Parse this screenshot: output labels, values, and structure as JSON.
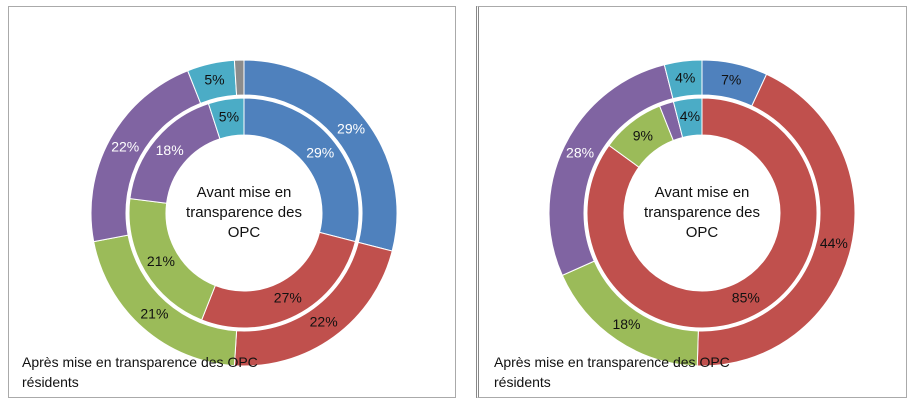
{
  "chart_data": [
    {
      "type": "donut",
      "colors": [
        "#4f81bd",
        "#c0504d",
        "#9bbb59",
        "#8064a2",
        "#4bacc6",
        "#8c8c8c"
      ],
      "series": [
        {
          "name": "Après mise en transparence des OPC résidents",
          "values": [
            29,
            22,
            21,
            22,
            5,
            1
          ],
          "value_labels": [
            "29%",
            "22%",
            "21%",
            "22%",
            "5%",
            null
          ]
        },
        {
          "name": "Avant mise en transparence des OPC",
          "values": [
            29,
            27,
            21,
            18,
            5
          ],
          "value_labels": [
            "29%",
            "27%",
            "21%",
            "18%",
            "5%"
          ]
        }
      ]
    },
    {
      "type": "donut",
      "colors": [
        "#4f81bd",
        "#c0504d",
        "#9bbb59",
        "#8064a2",
        "#4bacc6"
      ],
      "series": [
        {
          "name": "Après mise en transparence des OPC résidents",
          "values": [
            7,
            44,
            18,
            28,
            4
          ],
          "value_labels": [
            "7%",
            "44%",
            "18%",
            "28%",
            "4%"
          ]
        },
        {
          "name": "Avant mise en transparence des OPC",
          "values": [
            0,
            85,
            9,
            2,
            4
          ],
          "value_labels": [
            null,
            "85%",
            "9%",
            null,
            "4%"
          ]
        }
      ]
    }
  ]
}
